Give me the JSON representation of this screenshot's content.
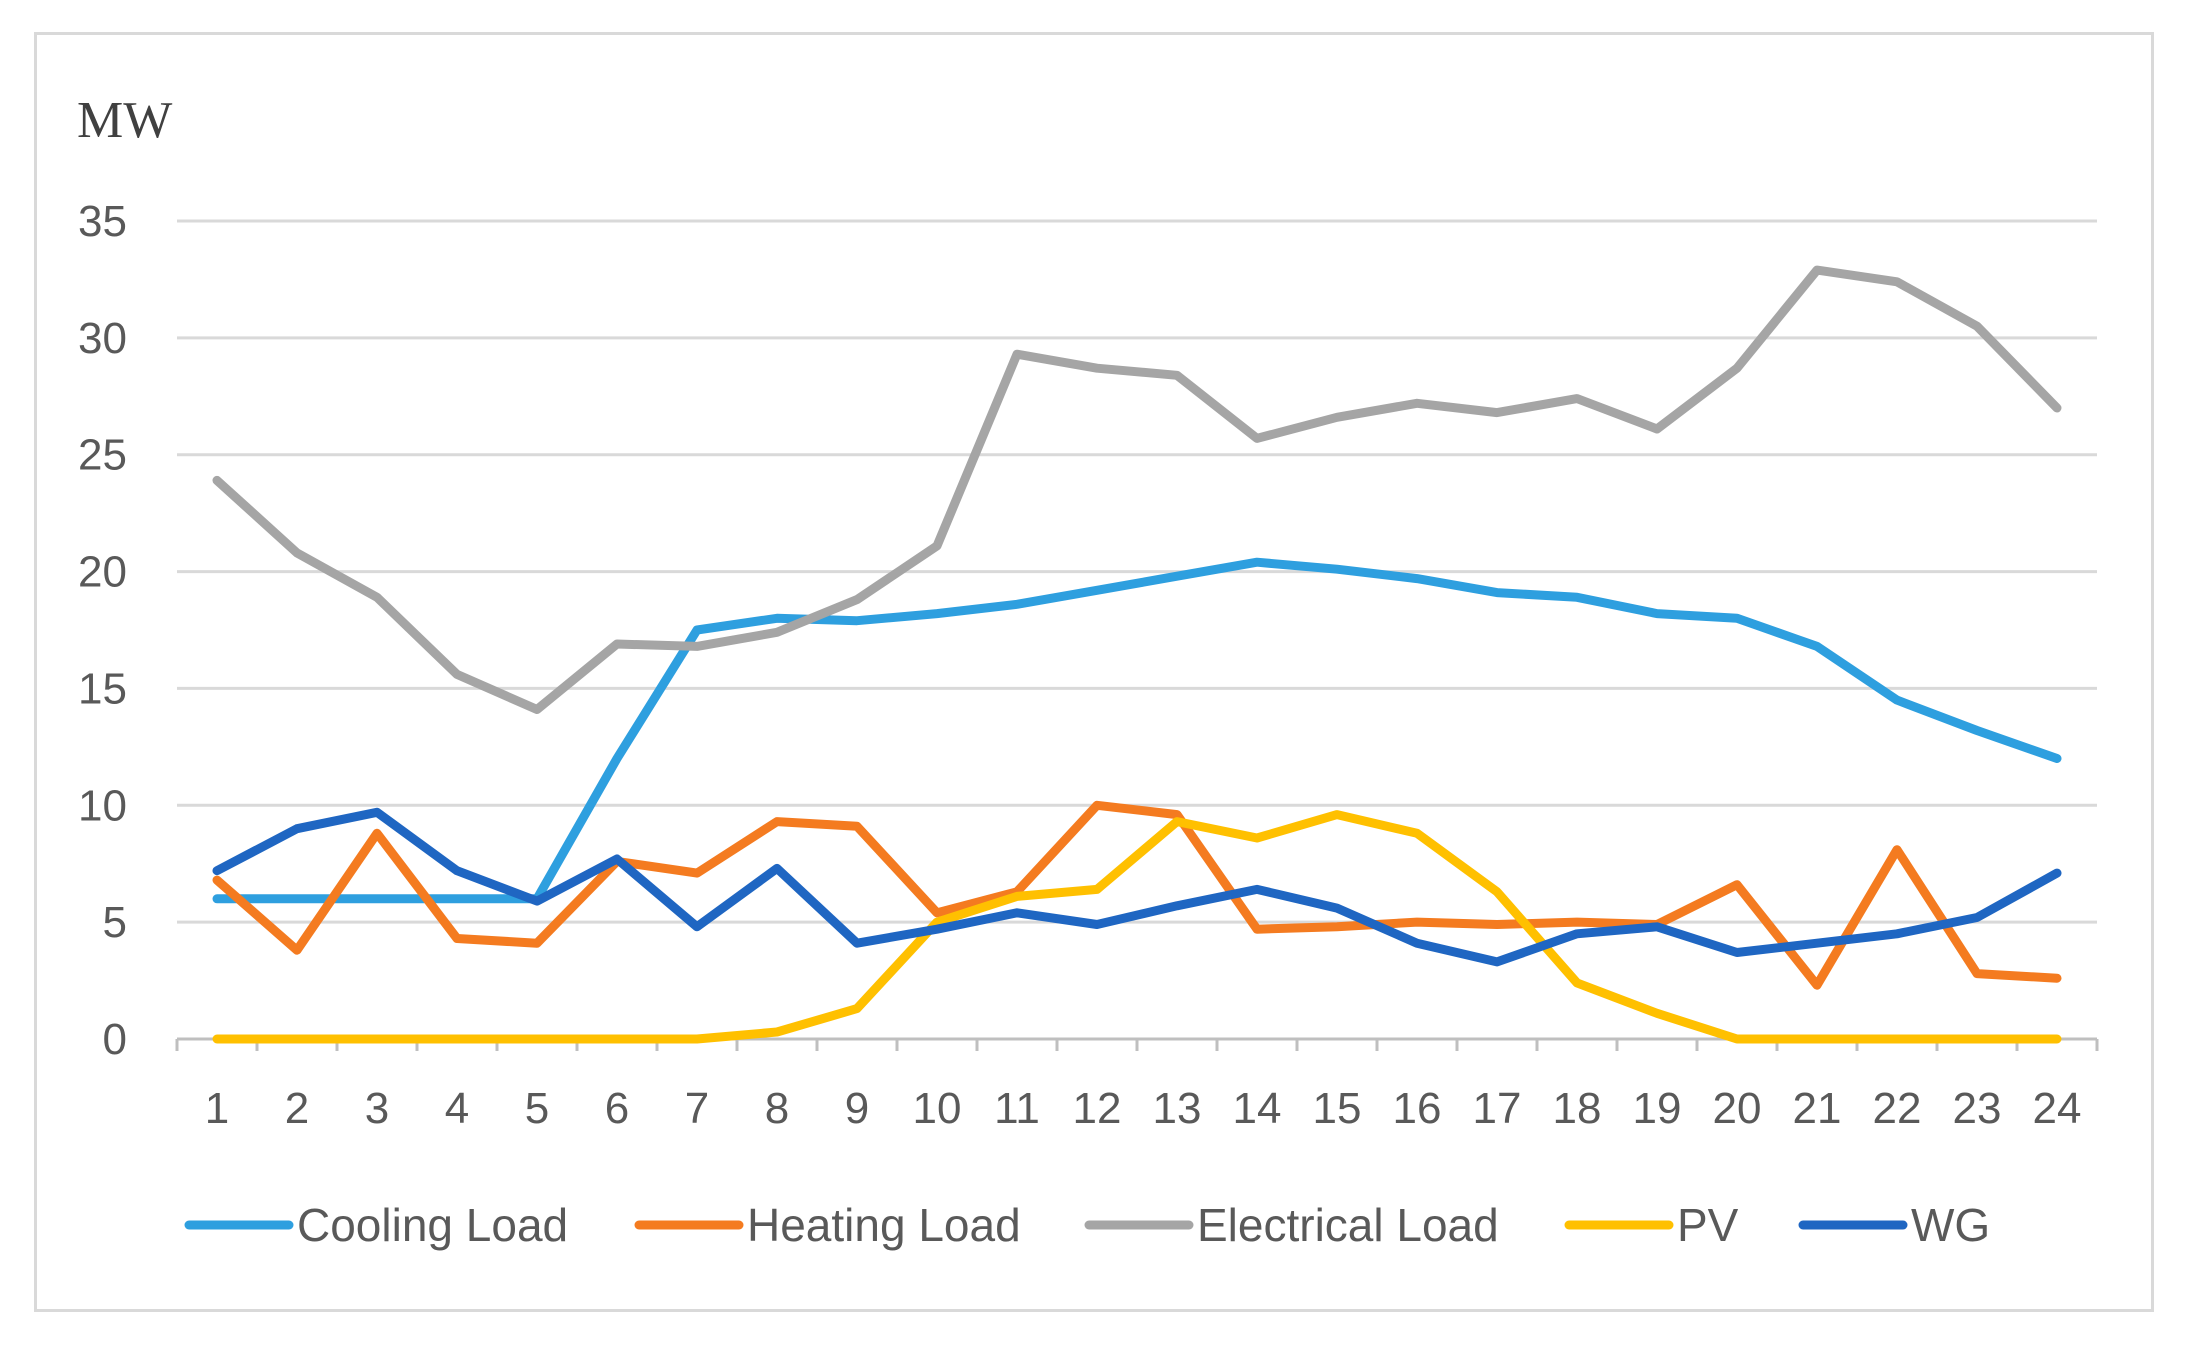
{
  "chart_data": {
    "type": "line",
    "title": "",
    "ylabel": "MW",
    "xlabel": "",
    "categories": [
      "1",
      "2",
      "3",
      "4",
      "5",
      "6",
      "7",
      "8",
      "9",
      "10",
      "11",
      "12",
      "13",
      "14",
      "15",
      "16",
      "17",
      "18",
      "19",
      "20",
      "21",
      "22",
      "23",
      "24"
    ],
    "ylim": [
      0,
      35
    ],
    "yticks": [
      0,
      5,
      10,
      15,
      20,
      25,
      30,
      35
    ],
    "grid": true,
    "legend_position": "bottom",
    "series": [
      {
        "name": "Cooling Load",
        "color": "#2e9fdf",
        "values": [
          6,
          6,
          6,
          6,
          6,
          12,
          17.5,
          18,
          17.9,
          18.2,
          18.6,
          19.2,
          19.8,
          20.4,
          20.1,
          19.7,
          19.1,
          18.9,
          18.2,
          18,
          16.8,
          14.5,
          13.2,
          12
        ]
      },
      {
        "name": "Heating Load",
        "color": "#f47b20",
        "values": [
          6.8,
          3.8,
          8.8,
          4.3,
          4.1,
          7.6,
          7.1,
          9.3,
          9.1,
          5.4,
          6.3,
          10,
          9.6,
          4.7,
          4.8,
          5,
          4.9,
          5,
          4.9,
          6.6,
          2.3,
          8.1,
          2.8,
          2.6
        ]
      },
      {
        "name": "Electrical Load",
        "color": "#a5a5a5",
        "values": [
          23.9,
          20.8,
          18.9,
          15.6,
          14.1,
          16.9,
          16.8,
          17.4,
          18.8,
          21.1,
          29.3,
          28.7,
          28.4,
          25.7,
          26.6,
          27.2,
          26.8,
          27.4,
          26.1,
          28.7,
          32.9,
          32.4,
          30.5,
          27
        ]
      },
      {
        "name": "PV",
        "color": "#ffc000",
        "values": [
          0,
          0,
          0,
          0,
          0,
          0,
          0,
          0.3,
          1.3,
          5,
          6.1,
          6.4,
          9.3,
          8.6,
          9.6,
          8.8,
          6.3,
          2.4,
          1.1,
          0,
          0,
          0,
          0,
          0
        ]
      },
      {
        "name": "WG",
        "color": "#1f66c2",
        "values": [
          7.2,
          9,
          9.7,
          7.2,
          5.9,
          7.7,
          4.8,
          7.3,
          4.1,
          4.7,
          5.4,
          4.9,
          5.7,
          6.4,
          5.6,
          4.1,
          3.3,
          4.5,
          4.8,
          3.7,
          4.1,
          4.5,
          5.2,
          7.1
        ]
      }
    ]
  }
}
